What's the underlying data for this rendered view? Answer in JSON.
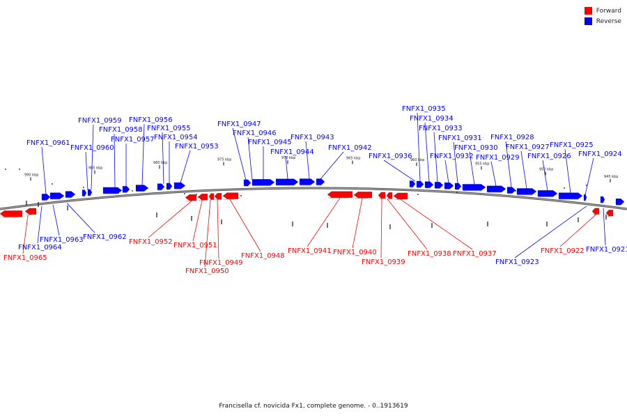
{
  "legend": [
    {
      "label": "Forward",
      "color": "#ff0000"
    },
    {
      "label": "Reverse",
      "color": "#0000ff"
    }
  ],
  "caption": "Francisella cf. novicida Fx1, complete genome. - 0..1913619",
  "colors": {
    "forward": "#ff0000",
    "reverse": "#0000ff",
    "backbone": "#888888"
  },
  "axis_ticks": [
    "990 kbp",
    "985 kbp",
    "980 kbp",
    "975 kbp",
    "970 kbp",
    "965 kbp",
    "960 kbp",
    "955 kbp",
    "950 kbp",
    "945 kbp"
  ],
  "labels_reverse": [
    "FNFX1_0961",
    "FNFX1_0960",
    "FNFX1_0959",
    "FNFX1_0958",
    "FNFX1_0957",
    "FNFX1_0956",
    "FNFX1_0955",
    "FNFX1_0954",
    "FNFX1_0953",
    "FNFX1_0947",
    "FNFX1_0946",
    "FNFX1_0945",
    "FNFX1_0944",
    "FNFX1_0943",
    "FNFX1_0942",
    "FNFX1_0936",
    "FNFX1_0935",
    "FNFX1_0934",
    "FNFX1_0933",
    "FNFX1_0932",
    "FNFX1_0931",
    "FNFX1_0930",
    "FNFX1_0929",
    "FNFX1_0928",
    "FNFX1_0927",
    "FNFX1_0926",
    "FNFX1_0925",
    "FNFX1_0924",
    "FNFX1_0964",
    "FNFX1_0963",
    "FNFX1_0962",
    "FNFX1_0923",
    "FNFX1_0921"
  ],
  "labels_forward": [
    "FNFX1_0965",
    "FNFX1_0952",
    "FNFX1_0951",
    "FNFX1_0950",
    "FNFX1_0949",
    "FNFX1_0948",
    "FNFX1_0941",
    "FNFX1_0940",
    "FNFX1_0939",
    "FNFX1_0938",
    "FNFX1_0937",
    "FNFX1_0922"
  ]
}
